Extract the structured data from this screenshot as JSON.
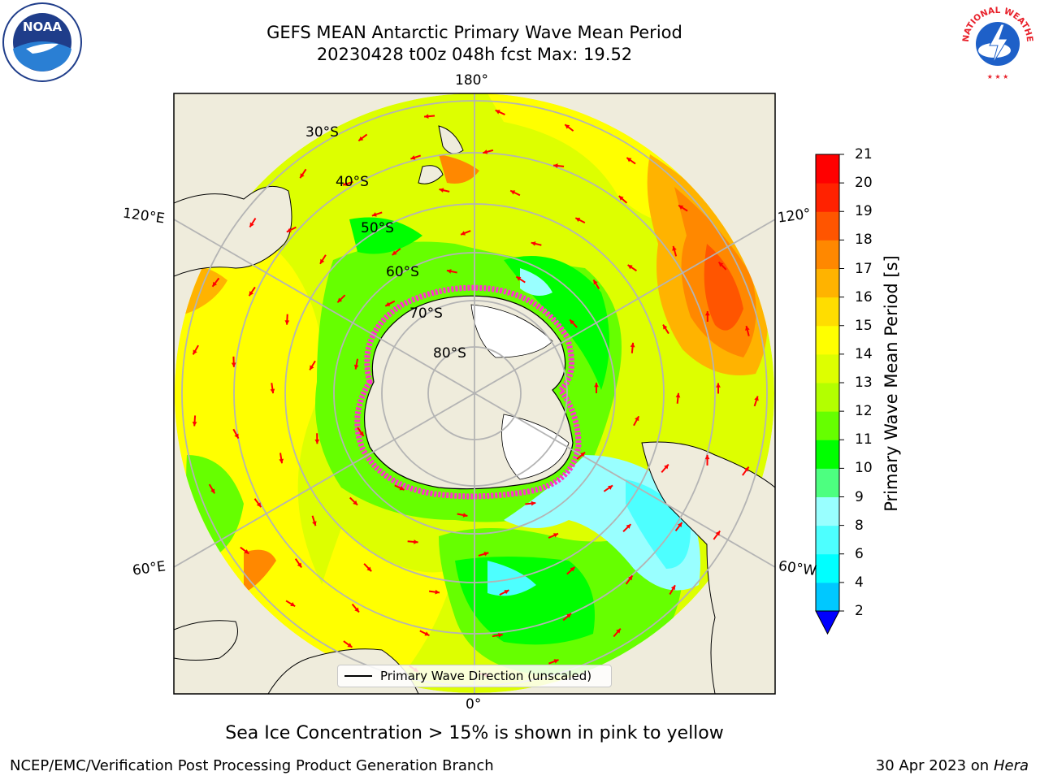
{
  "header": {
    "title_line1": "GEFS MEAN Antarctic Primary Wave Mean Period",
    "title_line2": "20230428 t00z 048h fcst   Max: 19.52"
  },
  "logos": {
    "left": "noaa-logo",
    "right": "national-weather-service-logo",
    "noaa_text": "NOAA",
    "nws_text": "NATIONAL WEATHER SERVICE"
  },
  "map": {
    "longitude_labels": {
      "top": "180°",
      "bottom": "0°",
      "upper_left": "120°E",
      "upper_right": "120°",
      "lower_left": "60°E",
      "lower_right": "60°W"
    },
    "latitude_labels": [
      "30°S",
      "40°S",
      "50°S",
      "60°S",
      "70°S",
      "80°S"
    ],
    "legend_label": "Primary Wave Direction (unscaled)",
    "arrow_color": "#ff0000",
    "land_color": "#efecdc",
    "sea_ice_color": "#ff33cc"
  },
  "colorbar": {
    "label": "Primary Wave Mean Period [s]",
    "ticks": [
      "2",
      "4",
      "6",
      "8",
      "9",
      "10",
      "11",
      "12",
      "13",
      "14",
      "15",
      "16",
      "17",
      "18",
      "19",
      "20",
      "21"
    ],
    "colors": [
      "#0064ff",
      "#00c8ff",
      "#00ffff",
      "#4dffff",
      "#99ffff",
      "#4dff80",
      "#00ff00",
      "#66ff00",
      "#b3ff00",
      "#ddff00",
      "#ffff00",
      "#ffdd00",
      "#ffb300",
      "#ff8800",
      "#ff5500",
      "#ff2200",
      "#ff0000"
    ],
    "extend_color": "#0000ff"
  },
  "notes": {
    "sea_ice": "Sea Ice Concentration > 15% is shown in pink to yellow"
  },
  "footer": {
    "left": "NCEP/EMC/Verification Post Processing Product Generation Branch",
    "date": "30 Apr 2023 on",
    "system": "Hera"
  }
}
